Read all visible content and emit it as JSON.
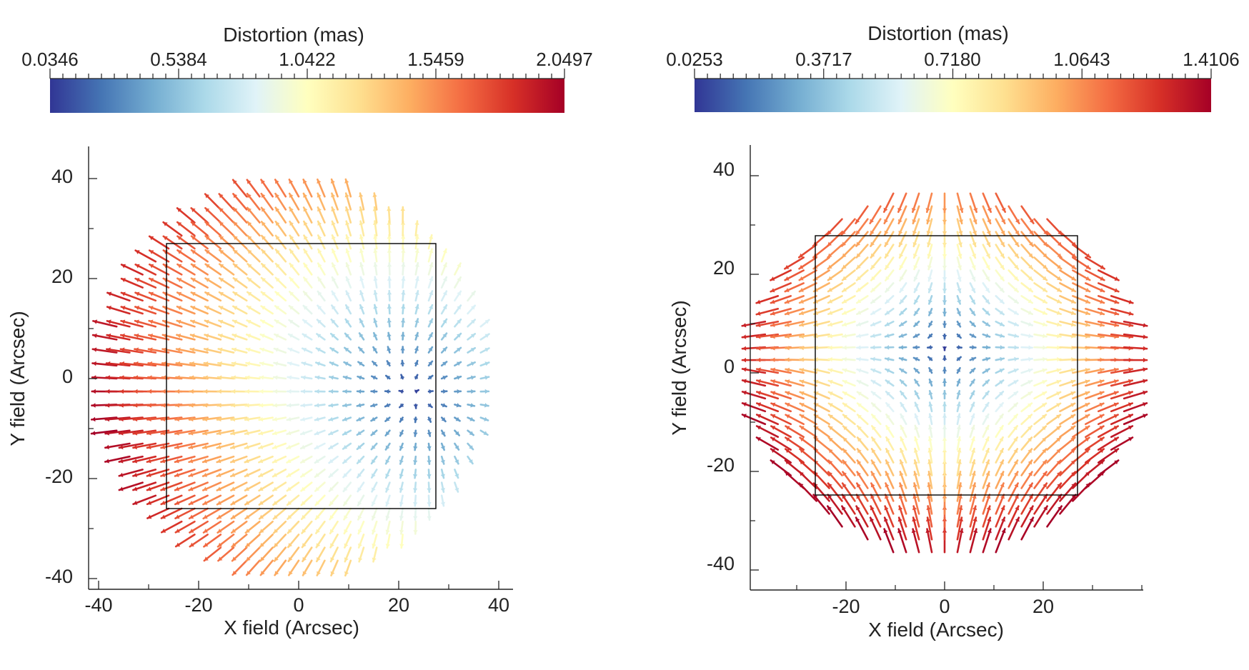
{
  "figure": {
    "panels": [
      {
        "colorbar": {
          "title": "Distortion (mas)",
          "tick_labels": [
            "0.0346",
            "0.5384",
            "1.0422",
            "1.5459",
            "2.0497"
          ],
          "range": [
            0.0346,
            2.0497
          ]
        },
        "xlabel": "X field (Arcsec)",
        "ylabel": "Y field (Arcsec)",
        "x_tick_labels": [
          "-40",
          "-20",
          "0",
          "20",
          "40"
        ],
        "y_tick_labels": [
          "40",
          "20",
          "0",
          "-20",
          "-40"
        ]
      },
      {
        "colorbar": {
          "title": "Distortion (mas)",
          "tick_labels": [
            "0.0253",
            "0.3717",
            "0.7180",
            "1.0643",
            "1.4106"
          ],
          "range": [
            0.0253,
            1.4106
          ]
        },
        "xlabel": "X field (Arcsec)",
        "ylabel": "Y field (Arcsec)",
        "x_tick_labels": [
          "-20",
          "0",
          "20"
        ],
        "y_tick_labels": [
          "40",
          "20",
          "0",
          "-20",
          "-40"
        ]
      }
    ]
  },
  "chart_data": [
    {
      "type": "quiver",
      "title": "Distortion (mas)",
      "xlabel": "X field (Arcsec)",
      "ylabel": "Y field (Arcsec)",
      "xlim": [
        -42,
        43
      ],
      "ylim": [
        -42,
        46
      ],
      "xticks": [
        -40,
        -20,
        0,
        20,
        40
      ],
      "yticks": [
        40,
        20,
        0,
        -20,
        -40
      ],
      "colorbar": {
        "label": "Distortion (mas)",
        "min": 0.0346,
        "max": 2.0497,
        "ticks": [
          0.0346,
          0.5384,
          1.0422,
          1.5459,
          2.0497
        ],
        "colormap": "RdYlBu_r"
      },
      "field": {
        "radius": 38,
        "grid_step": 2.6,
        "center": [
          22,
          -3
        ],
        "max_length_arcsec": 4.5,
        "pattern": "vectors point away from center"
      },
      "detector_box": {
        "x": [
          -26.5,
          26.5
        ],
        "y": [
          -26.5,
          26.5
        ]
      }
    },
    {
      "type": "quiver",
      "title": "Distortion (mas)",
      "xlabel": "X field (Arcsec)",
      "ylabel": "Y field (Arcsec)",
      "xlim": [
        -40,
        40
      ],
      "ylim": [
        -46,
        45
      ],
      "xticks": [
        -20,
        0,
        20
      ],
      "yticks": [
        40,
        20,
        0,
        -20,
        -40
      ],
      "colorbar": {
        "label": "Distortion (mas)",
        "min": 0.0253,
        "max": 1.4106,
        "ticks": [
          0.0253,
          0.3717,
          0.718,
          1.0643,
          1.4106
        ],
        "colormap": "RdYlBu_r"
      },
      "field": {
        "radius": 38,
        "grid_step": 2.6,
        "center": [
          0,
          5
        ],
        "max_length_arcsec": 4.5,
        "pattern": "saddle: outward in x, inward in y"
      },
      "detector_box": {
        "x": [
          -26.5,
          26.5
        ],
        "y": [
          -26.5,
          26.5
        ]
      }
    }
  ],
  "colors": {
    "colormap": [
      "#313695",
      "#4575b4",
      "#74add1",
      "#abd9e9",
      "#e0f3f8",
      "#ffffbf",
      "#fee090",
      "#fdae61",
      "#f46d43",
      "#d73027",
      "#a50026"
    ],
    "axis": "#222222",
    "box": "#000000"
  }
}
